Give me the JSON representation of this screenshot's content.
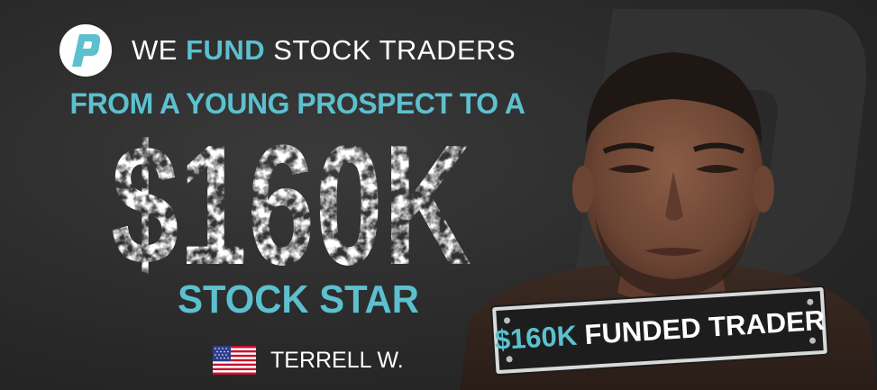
{
  "header": {
    "prefix": "WE",
    "highlight": "FUND",
    "suffix": "STOCK TRADERS"
  },
  "subhead": "FROM A YOUNG PROSPECT TO A",
  "amount": "$160K",
  "title_line": "STOCK STAR",
  "trader": {
    "name": "TERRELL W.",
    "flag": "us-flag-icon"
  },
  "badge": {
    "highlight": "$160K",
    "text": "FUNDED TRADER"
  },
  "colors": {
    "accent": "#5cc0cf",
    "background": "#2b2b2b",
    "text": "#ffffff"
  }
}
